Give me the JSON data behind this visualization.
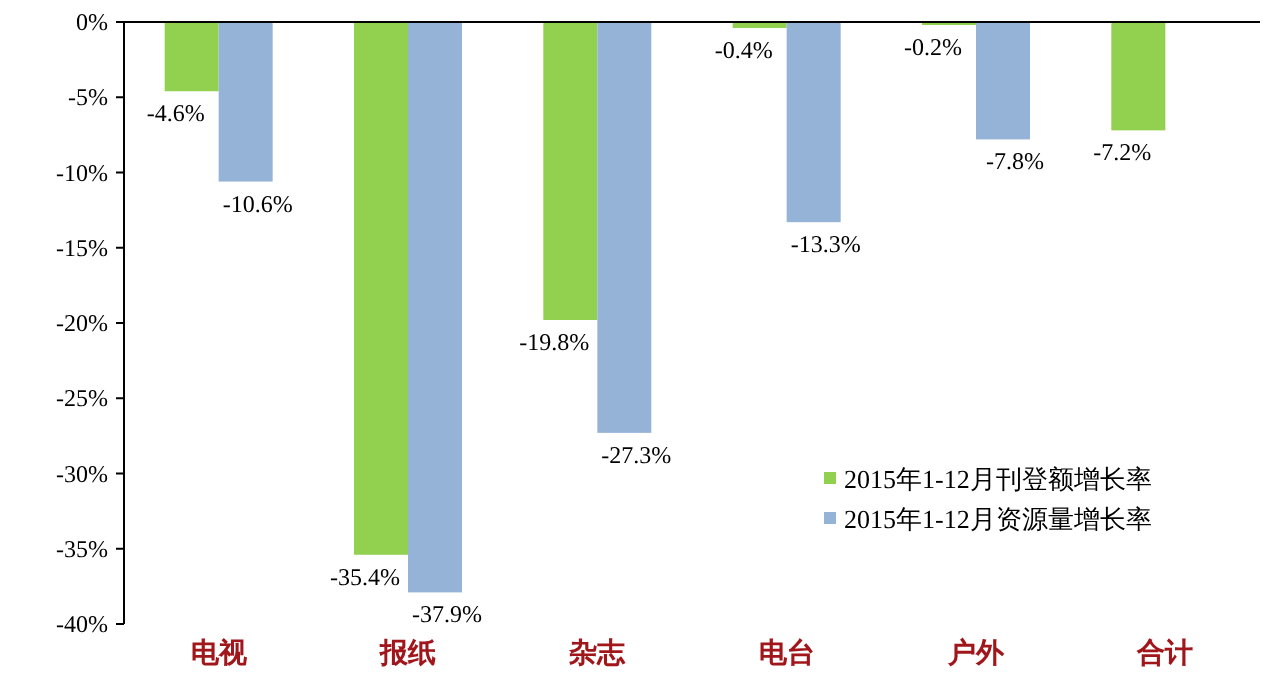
{
  "chart_data": {
    "type": "bar",
    "categories": [
      "电视",
      "报纸",
      "杂志",
      "电台",
      "户外",
      "合计"
    ],
    "series": [
      {
        "name": "2015年1-12月刊登额增长率",
        "color": "#92d050",
        "values": [
          -4.6,
          -35.4,
          -19.8,
          -0.4,
          -0.2,
          -7.2
        ],
        "value_labels": [
          "-4.6%",
          "-35.4%",
          "-19.8%",
          "-0.4%",
          "-0.2%",
          "-7.2%"
        ]
      },
      {
        "name": "2015年1-12月资源量增长率",
        "color": "#95b3d7",
        "values": [
          -10.6,
          -37.9,
          -27.3,
          -13.3,
          -7.8,
          null
        ],
        "value_labels": [
          "-10.6%",
          "-37.9%",
          "-27.3%",
          "-13.3%",
          "-7.8%",
          null
        ]
      }
    ],
    "ylim": [
      -40,
      0
    ],
    "yticks": [
      {
        "value": 0,
        "label": "0%"
      },
      {
        "value": -5,
        "label": "-5%"
      },
      {
        "value": -10,
        "label": "-10%"
      },
      {
        "value": -15,
        "label": "-15%"
      },
      {
        "value": -20,
        "label": "-20%"
      },
      {
        "value": -25,
        "label": "-25%"
      },
      {
        "value": -30,
        "label": "-30%"
      },
      {
        "value": -35,
        "label": "-35%"
      },
      {
        "value": -40,
        "label": "-40%"
      }
    ],
    "grid": false,
    "legend": "bottom right"
  }
}
